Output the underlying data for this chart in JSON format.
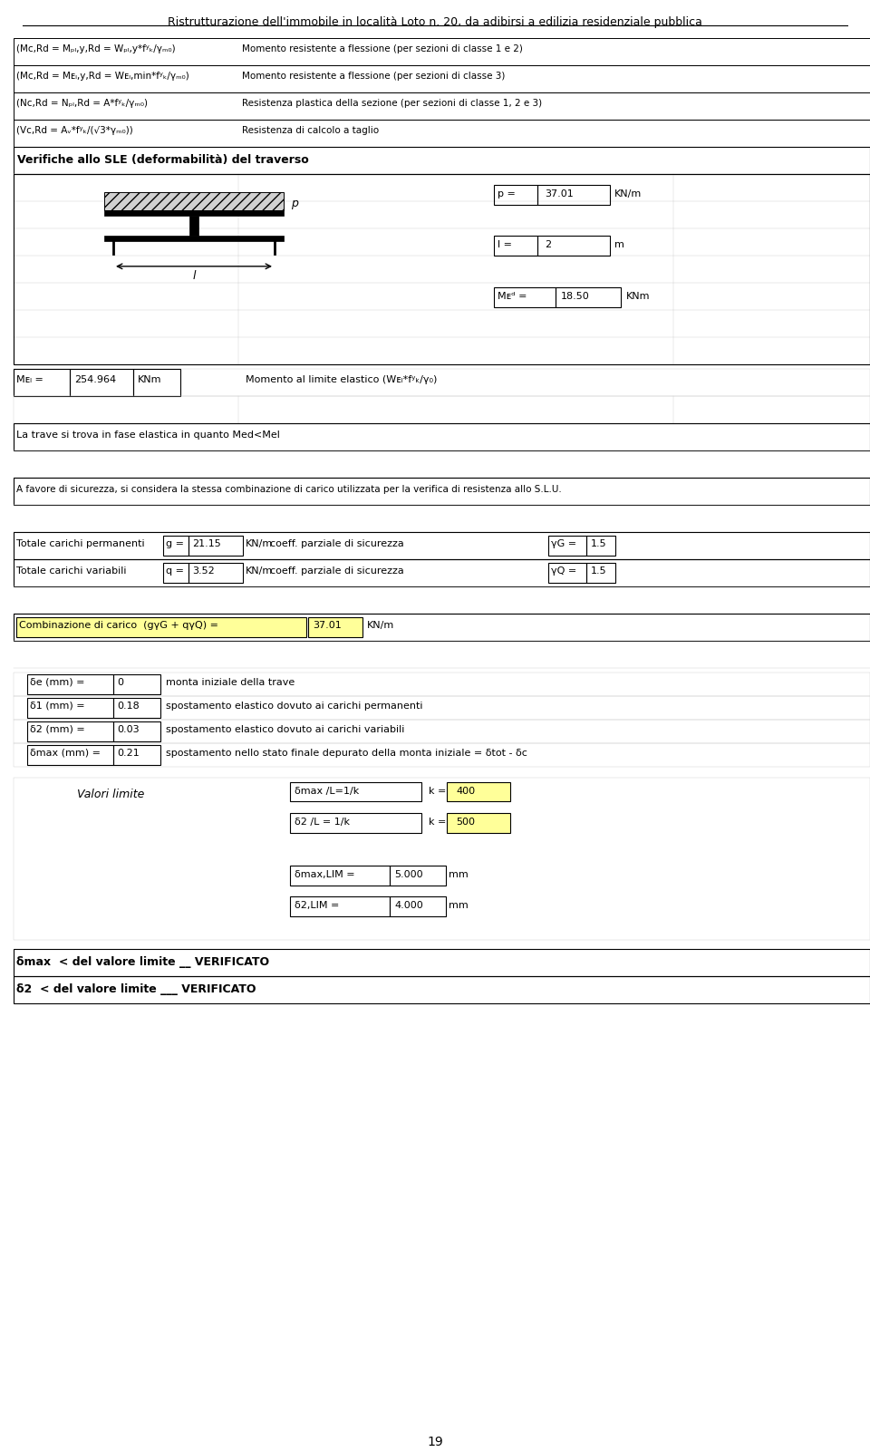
{
  "title": "Ristrutturazione dell'immobile in località Loto n. 20, da adibirsi a edilizia residenziale pubblica",
  "page_number": "19",
  "table1_rows": [
    [
      "(Mᴄ,Rd = Mₚₗ,y,Rd = Wₚₗ,y*fʸₖ/γₘ₀)",
      "Momento resistente a flessione (per sezioni di classe 1 e 2)"
    ],
    [
      "(Mᴄ,Rd = Mᴇₗ,y,Rd = Wᴇₗ,min*fʸₖ/γₘ₀)",
      "Momento resistente a flessione (per sezioni di classe 3)"
    ],
    [
      "(Nᴄ,Rd = Nₚₗ,Rd = A*fʸₖ/γₘ₀)",
      "Resistenza plastica della sezione (per sezioni di classe 1, 2 e 3)"
    ],
    [
      "(Vᴄ,Rd = Aᵥ*fʸₖ/(√3*γₘ₀))",
      "Resistenza di calcolo a taglio"
    ]
  ],
  "section_title": "Verifiche allo SLE (deformabilità) del traverso",
  "p_value": "37.01",
  "p_unit": "KN/m",
  "l_value": "2",
  "l_unit": "m",
  "Med_value": "18.50",
  "Med_unit": "KNm",
  "Mel_value": "254.964",
  "Mel_unit": "KNm",
  "elastic_text": "La trave si trova in fase elastica in quanto Med<Mel",
  "favore_text": "A favore di sicurezza, si considera la stessa combinazione di carico utilizzata per la verifica di resistenza allo S.L.U.",
  "carichi_perm_label": "Totale carichi permanenti",
  "carichi_var_label": "Totale carichi variabili",
  "g_value": "21.15",
  "g_unit": "KN/m",
  "gamma_G_value": "1.5",
  "q_value": "3.52",
  "q_unit": "KN/m",
  "gamma_Q_value": "1.5",
  "coeff_label": "coeff. parziale di sicurezza",
  "comb_label": "Combinazione di carico  (gγG + qγQ) =",
  "comb_value": "37.01",
  "comb_unit": "KN/m",
  "delta_e_label": "δe (mm) =",
  "delta_e_value": "0",
  "delta_e_desc": "monta iniziale della trave",
  "delta_1_label": "δ1 (mm) =",
  "delta_1_value": "0.18",
  "delta_1_desc": "spostamento elastico dovuto ai carichi permanenti",
  "delta_2_label": "δ2 (mm) =",
  "delta_2_value": "0.03",
  "delta_2_desc": "spostamento elastico dovuto ai carichi variabili",
  "delta_max_label": "δmax (mm) =",
  "delta_max_value": "0.21",
  "delta_max_desc": "spostamento nello stato finale depurato della monta iniziale = δtot - δc",
  "valori_limite": "Valori limite",
  "delta_max_L_label": "δmax /L=1/k",
  "delta_max_k_value": "400",
  "delta_2_L_label": "δ2 /L = 1/k",
  "delta_2_k_value": "500",
  "delta_max_lim_label": "δmax,LIM =",
  "delta_max_lim_value": "5.000",
  "delta_max_lim_unit": "mm",
  "delta_2_lim_label": "δ2,LIM =",
  "delta_2_lim_value": "4.000",
  "delta_2_lim_unit": "mm",
  "verificato_max": "δmax  < del valore limite __ VERIFICATO",
  "verificato_2": "δ2  < del valore limite ___ VERIFICATO",
  "bg_color": "#ffffff",
  "grid_color": "#cccccc",
  "yellow": "#ffff99"
}
